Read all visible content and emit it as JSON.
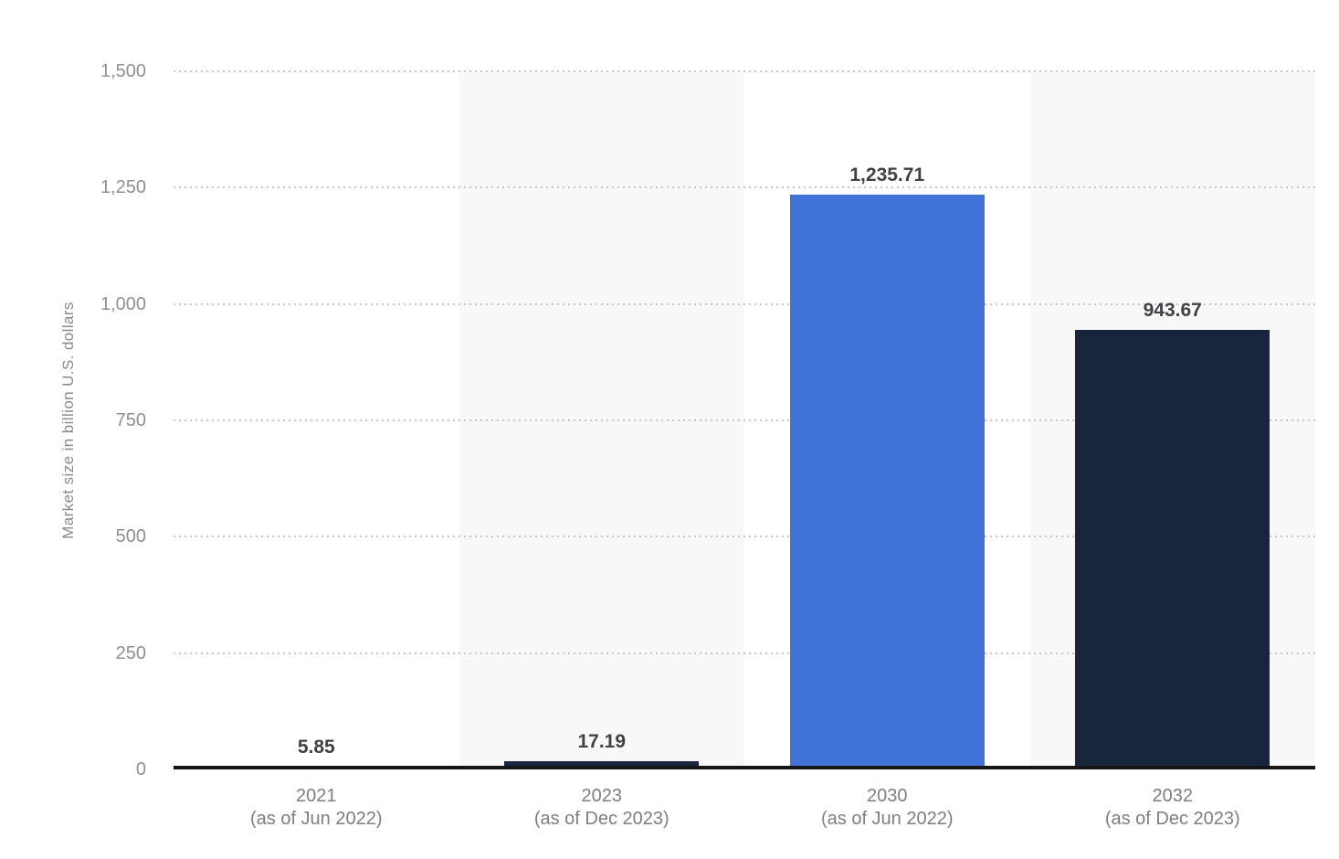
{
  "chart_data": {
    "type": "bar",
    "ylabel": "Market size in billion U.S. dollars",
    "xlabel": "",
    "ylim": [
      0,
      1500
    ],
    "grid": "horizontal-dotted",
    "legend": "none",
    "categories": [
      {
        "year": "2021",
        "note": "(as of Jun 2022)"
      },
      {
        "year": "2023",
        "note": "(as of Dec 2023)"
      },
      {
        "year": "2030",
        "note": "(as of Jun 2022)"
      },
      {
        "year": "2032",
        "note": "(as of Dec 2023)"
      }
    ],
    "values": [
      5.85,
      17.19,
      1235.71,
      943.67
    ],
    "value_labels": [
      "5.85",
      "17.19",
      "1,235.71",
      "943.67"
    ],
    "yticks": [
      {
        "value": 0,
        "label": "0"
      },
      {
        "value": 250,
        "label": "250"
      },
      {
        "value": 500,
        "label": "500"
      },
      {
        "value": 750,
        "label": "750"
      },
      {
        "value": 1000,
        "label": "1,000"
      },
      {
        "value": 1250,
        "label": "1,250"
      },
      {
        "value": 1500,
        "label": "1,500"
      }
    ],
    "bar_colors": [
      "#4173d7",
      "#17263d",
      "#4173d7",
      "#17263d"
    ],
    "shaded_columns": [
      1,
      3
    ],
    "colors": {
      "bar_blue": "#4173d7",
      "bar_navy": "#17263d",
      "column_band": "#f8f8f8",
      "gridline": "#c6c6c6",
      "axis_line": "#161616",
      "tick_label": "#909090",
      "x_label": "#7e7e7e",
      "value_label": "#3e4247",
      "background": "#ffffff"
    }
  }
}
